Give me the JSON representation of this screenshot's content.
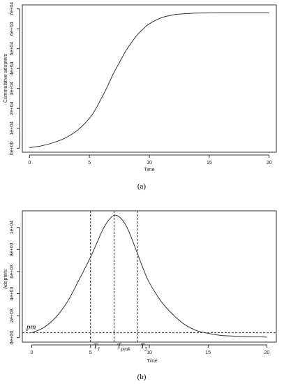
{
  "chart_data": [
    {
      "type": "line",
      "xlabel": "Time",
      "ylabel": "Cummulative adopters",
      "caption": "(a)",
      "xlim": [
        -0.6,
        20.6
      ],
      "ylim": [
        -2000,
        72000
      ],
      "x_ticks": [
        0,
        5,
        10,
        15,
        20
      ],
      "x_tick_labels": [
        "0",
        "5",
        "10",
        "15",
        "20"
      ],
      "y_ticks": [
        0,
        10000,
        20000,
        30000,
        40000,
        50000,
        60000,
        70000
      ],
      "y_tick_labels": [
        "0e+00",
        "1e+04",
        "2e+04",
        "3e+04",
        "4e+04",
        "5e+04",
        "6e+04",
        "7e+04"
      ],
      "series": [
        {
          "color": "#333333",
          "x": [
            0,
            1,
            2,
            3,
            4,
            5,
            5.5,
            6,
            6.5,
            7,
            7.5,
            8,
            8.5,
            9,
            9.5,
            10,
            11,
            12,
            13,
            14,
            15,
            16,
            17,
            18,
            19,
            20
          ],
          "y": [
            300,
            1200,
            2800,
            5200,
            9000,
            15000,
            19500,
            25000,
            31000,
            37500,
            43000,
            48500,
            53000,
            57000,
            60000,
            62500,
            65500,
            67000,
            67600,
            67900,
            68000,
            68050,
            68050,
            68050,
            68050,
            68050
          ]
        }
      ]
    },
    {
      "type": "line",
      "xlabel": "Time",
      "ylabel": "Adopters",
      "caption": "(b)",
      "xlim": [
        -0.8,
        20.8
      ],
      "ylim": [
        -400,
        11500
      ],
      "x_ticks": [
        0,
        5,
        10,
        15,
        20
      ],
      "x_tick_labels": [
        "0",
        "5",
        "10",
        "15",
        "20"
      ],
      "y_ticks": [
        0,
        2000,
        4000,
        6000,
        8000,
        10000
      ],
      "y_tick_labels": [
        "0e+00",
        "2e+03",
        "4e+03",
        "6e+03",
        "8e+03",
        "1e+04"
      ],
      "series": [
        {
          "color": "#333333",
          "x": [
            0,
            1,
            2,
            3,
            4,
            5,
            5.5,
            6,
            6.5,
            7,
            7.5,
            8,
            8.5,
            9,
            9.5,
            10,
            11,
            12,
            13,
            14,
            15,
            16,
            17,
            18,
            19,
            20
          ],
          "y": [
            450,
            900,
            1800,
            3200,
            5200,
            7300,
            8500,
            9700,
            10600,
            11100,
            10900,
            10200,
            9000,
            7600,
            6200,
            5000,
            3300,
            2100,
            1200,
            650,
            400,
            220,
            150,
            100,
            80,
            60
          ]
        }
      ],
      "reference_lines": {
        "horizontal": [
          {
            "y": 450,
            "label": "pm"
          }
        ],
        "vertical": [
          {
            "x": 5,
            "label": "T",
            "sub": "1"
          },
          {
            "x": 7,
            "label": "T",
            "sub": "peak"
          },
          {
            "x": 9,
            "label": "T",
            "sub": "2"
          }
        ]
      }
    }
  ]
}
